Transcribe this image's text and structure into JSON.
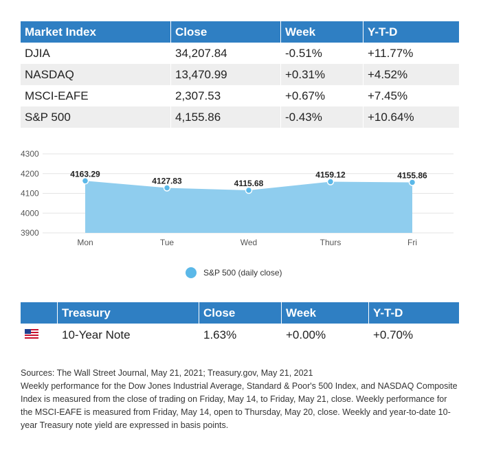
{
  "market_table": {
    "headers": [
      "Market Index",
      "Close",
      "Week",
      "Y-T-D"
    ],
    "rows": [
      [
        "DJIA",
        "34,207.84",
        "-0.51%",
        "+11.77%"
      ],
      [
        "NASDAQ",
        "13,470.99",
        "+0.31%",
        "+4.52%"
      ],
      [
        "MSCI-EAFE",
        "2,307.53",
        "+0.67%",
        "+7.45%"
      ],
      [
        "S&P 500",
        "4,155.86",
        "-0.43%",
        "+10.64%"
      ]
    ]
  },
  "chart_data": {
    "type": "area",
    "categories": [
      "Mon",
      "Tue",
      "Wed",
      "Thurs",
      "Fri"
    ],
    "series": [
      {
        "name": "S&P 500 (daily close)",
        "values": [
          4163.29,
          4127.83,
          4115.68,
          4159.12,
          4155.86
        ],
        "labels": [
          "4163.29",
          "4127.83",
          "4115.68",
          "4159.12",
          "4155.86"
        ],
        "color": "#8fcdee",
        "point_color": "#5bb8e8"
      }
    ],
    "ylim": [
      3900,
      4300
    ],
    "yticks": [
      "3900",
      "4000",
      "4100",
      "4200",
      "4300"
    ],
    "grid": true,
    "legend_position": "bottom",
    "title": "",
    "xlabel": "",
    "ylabel": ""
  },
  "treasury_table": {
    "headers": [
      "",
      "Treasury",
      "Close",
      "Week",
      "Y-T-D"
    ],
    "row": {
      "flag_icon": "us-flag-icon",
      "name": "10-Year Note",
      "close": "1.63%",
      "week": "+0.00%",
      "ytd": "+0.70%"
    }
  },
  "footnote": {
    "sources": "Sources: The Wall Street Journal, May 21, 2021; Treasury.gov, May 21, 2021",
    "body": "Weekly performance for the Dow Jones Industrial Average, Standard & Poor's 500 Index, and NASDAQ Composite Index is measured from the close of trading on Friday, May 14, to Friday, May 21, close. Weekly performance for the MSCI-EAFE is measured from Friday, May 14, open to Thursday, May 20, close. Weekly and year-to-date 10-year Treasury note yield are expressed in basis points."
  },
  "colors": {
    "header_blue": "#2f7fc3",
    "row_alt": "#eeeeee",
    "area_fill": "#8fcdee",
    "point": "#5bb8e8"
  }
}
